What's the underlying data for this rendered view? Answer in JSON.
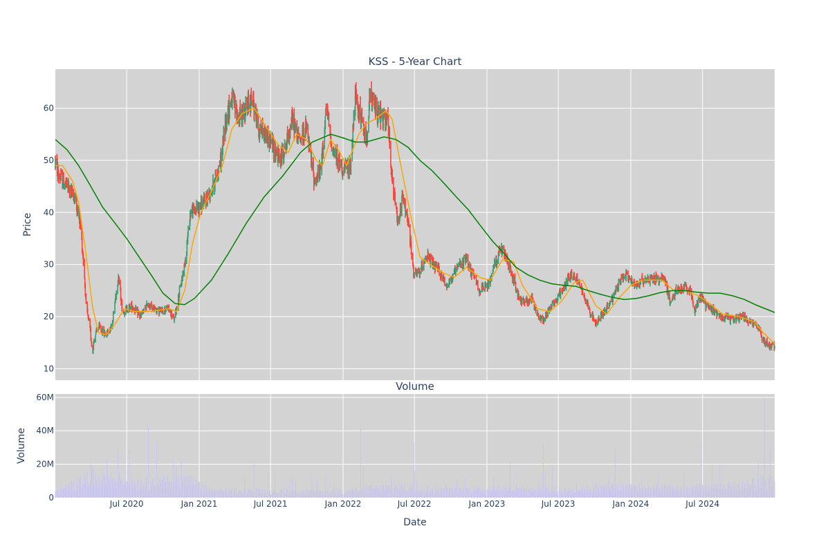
{
  "chart_data": [
    {
      "type": "candlestick",
      "title": "KSS - 5-Year Chart",
      "ylabel": "Price",
      "ylim": [
        7.8,
        67.5
      ],
      "yticks": [
        10,
        20,
        30,
        40,
        50,
        60
      ],
      "grid": true,
      "background": "#d3d3d3",
      "increasing_color": "#3d9970",
      "decreasing_color": "#ff4136",
      "x_start": "2020-01-02",
      "x_end": "2024-12-31",
      "anchors": [
        [
          "2020-01-02",
          50
        ],
        [
          "2020-01-10",
          47
        ],
        [
          "2020-02-01",
          45
        ],
        [
          "2020-02-20",
          43
        ],
        [
          "2020-03-05",
          38
        ],
        [
          "2020-03-15",
          29
        ],
        [
          "2020-03-20",
          22
        ],
        [
          "2020-03-31",
          17
        ],
        [
          "2020-04-05",
          13
        ],
        [
          "2020-04-10",
          16
        ],
        [
          "2020-04-20",
          18
        ],
        [
          "2020-05-10",
          16.5
        ],
        [
          "2020-05-25",
          18.5
        ],
        [
          "2020-06-05",
          25
        ],
        [
          "2020-06-10",
          28
        ],
        [
          "2020-06-20",
          21
        ],
        [
          "2020-07-15",
          22
        ],
        [
          "2020-08-05",
          20
        ],
        [
          "2020-08-25",
          22.5
        ],
        [
          "2020-09-20",
          21
        ],
        [
          "2020-10-15",
          21.5
        ],
        [
          "2020-10-30",
          19.5
        ],
        [
          "2020-11-10",
          24
        ],
        [
          "2020-11-25",
          30
        ],
        [
          "2020-12-10",
          40
        ],
        [
          "2020-12-31",
          41
        ],
        [
          "2021-01-15",
          42
        ],
        [
          "2021-02-05",
          45
        ],
        [
          "2021-02-25",
          50
        ],
        [
          "2021-03-10",
          58
        ],
        [
          "2021-03-25",
          62
        ],
        [
          "2021-04-10",
          58
        ],
        [
          "2021-05-01",
          60
        ],
        [
          "2021-05-15",
          62
        ],
        [
          "2021-06-01",
          56
        ],
        [
          "2021-06-20",
          55
        ],
        [
          "2021-07-05",
          53
        ],
        [
          "2021-07-25",
          50
        ],
        [
          "2021-08-10",
          53
        ],
        [
          "2021-08-25",
          58
        ],
        [
          "2021-09-10",
          54
        ],
        [
          "2021-09-30",
          56
        ],
        [
          "2021-10-20",
          46
        ],
        [
          "2021-11-05",
          48
        ],
        [
          "2021-11-20",
          60
        ],
        [
          "2021-12-05",
          52
        ],
        [
          "2021-12-20",
          50
        ],
        [
          "2022-01-05",
          48
        ],
        [
          "2022-01-20",
          49
        ],
        [
          "2022-02-01",
          62
        ],
        [
          "2022-02-15",
          58
        ],
        [
          "2022-03-01",
          54
        ],
        [
          "2022-03-10",
          62
        ],
        [
          "2022-03-25",
          60
        ],
        [
          "2022-04-10",
          58
        ],
        [
          "2022-04-25",
          57
        ],
        [
          "2022-05-05",
          46
        ],
        [
          "2022-05-20",
          38
        ],
        [
          "2022-06-01",
          43
        ],
        [
          "2022-06-15",
          38
        ],
        [
          "2022-06-30",
          28
        ],
        [
          "2022-07-15",
          28.5
        ],
        [
          "2022-07-31",
          32
        ],
        [
          "2022-08-15",
          30
        ],
        [
          "2022-08-31",
          29
        ],
        [
          "2022-09-20",
          26
        ],
        [
          "2022-10-05",
          27.5
        ],
        [
          "2022-10-25",
          30
        ],
        [
          "2022-11-10",
          31
        ],
        [
          "2022-11-25",
          28
        ],
        [
          "2022-12-15",
          25
        ],
        [
          "2023-01-05",
          26
        ],
        [
          "2023-01-20",
          30
        ],
        [
          "2023-02-05",
          33
        ],
        [
          "2023-02-20",
          31
        ],
        [
          "2023-03-10",
          27
        ],
        [
          "2023-03-25",
          23
        ],
        [
          "2023-04-10",
          23
        ],
        [
          "2023-04-25",
          23.5
        ],
        [
          "2023-05-10",
          20
        ],
        [
          "2023-05-25",
          19.5
        ],
        [
          "2023-06-10",
          22
        ],
        [
          "2023-06-25",
          23
        ],
        [
          "2023-07-10",
          25
        ],
        [
          "2023-07-31",
          28
        ],
        [
          "2023-08-15",
          27.5
        ],
        [
          "2023-08-31",
          25
        ],
        [
          "2023-09-20",
          21
        ],
        [
          "2023-10-05",
          18.5
        ],
        [
          "2023-10-20",
          20.5
        ],
        [
          "2023-11-05",
          22
        ],
        [
          "2023-11-20",
          24
        ],
        [
          "2023-12-05",
          27
        ],
        [
          "2023-12-20",
          28
        ],
        [
          "2024-01-10",
          26
        ],
        [
          "2024-01-31",
          27
        ],
        [
          "2024-02-20",
          27.5
        ],
        [
          "2024-03-10",
          27
        ],
        [
          "2024-03-25",
          28
        ],
        [
          "2024-04-10",
          22.5
        ],
        [
          "2024-04-25",
          25
        ],
        [
          "2024-05-15",
          25.5
        ],
        [
          "2024-05-31",
          25
        ],
        [
          "2024-06-10",
          21
        ],
        [
          "2024-06-25",
          24
        ],
        [
          "2024-07-10",
          22
        ],
        [
          "2024-07-31",
          21
        ],
        [
          "2024-08-20",
          20
        ],
        [
          "2024-09-15",
          19.5
        ],
        [
          "2024-10-10",
          20
        ],
        [
          "2024-10-31",
          19
        ],
        [
          "2024-11-20",
          18
        ],
        [
          "2024-12-01",
          15.5
        ],
        [
          "2024-12-20",
          14.5
        ],
        [
          "2024-12-31",
          14.2
        ]
      ],
      "overlays": [
        {
          "type": "line",
          "color": "#ffa500",
          "points": [
            [
              "2020-01-02",
              49
            ],
            [
              "2020-01-20",
              49
            ],
            [
              "2020-02-15",
              46
            ],
            [
              "2020-03-01",
              42
            ],
            [
              "2020-03-20",
              32
            ],
            [
              "2020-04-05",
              22
            ],
            [
              "2020-04-20",
              17
            ],
            [
              "2020-05-10",
              16.5
            ],
            [
              "2020-06-01",
              18.5
            ],
            [
              "2020-06-25",
              21.5
            ],
            [
              "2020-07-20",
              21
            ],
            [
              "2020-09-01",
              21
            ],
            [
              "2020-10-15",
              21.5
            ],
            [
              "2020-11-05",
              21
            ],
            [
              "2020-11-25",
              25
            ],
            [
              "2020-12-15",
              34
            ],
            [
              "2021-01-05",
              40
            ],
            [
              "2021-02-01",
              44
            ],
            [
              "2021-03-01",
              49
            ],
            [
              "2021-03-25",
              56
            ],
            [
              "2021-04-20",
              59
            ],
            [
              "2021-05-20",
              60
            ],
            [
              "2021-06-15",
              57
            ],
            [
              "2021-07-20",
              53
            ],
            [
              "2021-08-15",
              51.5
            ],
            [
              "2021-09-05",
              55
            ],
            [
              "2021-09-30",
              54
            ],
            [
              "2021-10-25",
              50
            ],
            [
              "2021-11-10",
              49
            ],
            [
              "2021-11-30",
              54
            ],
            [
              "2021-12-20",
              52
            ],
            [
              "2022-01-10",
              49
            ],
            [
              "2022-02-10",
              55
            ],
            [
              "2022-03-01",
              57
            ],
            [
              "2022-03-25",
              58
            ],
            [
              "2022-04-20",
              59.5
            ],
            [
              "2022-05-05",
              58
            ],
            [
              "2022-05-25",
              50
            ],
            [
              "2022-06-20",
              40
            ],
            [
              "2022-07-15",
              31.5
            ],
            [
              "2022-08-10",
              30
            ],
            [
              "2022-09-10",
              28.5
            ],
            [
              "2022-10-10",
              27.5
            ],
            [
              "2022-11-10",
              29.5
            ],
            [
              "2022-12-15",
              27.5
            ],
            [
              "2023-01-10",
              27
            ],
            [
              "2023-02-10",
              31
            ],
            [
              "2023-03-10",
              30.5
            ],
            [
              "2023-04-01",
              26
            ],
            [
              "2023-05-10",
              21.5
            ],
            [
              "2023-06-10",
              21
            ],
            [
              "2023-07-10",
              23
            ],
            [
              "2023-08-10",
              26.5
            ],
            [
              "2023-09-01",
              27
            ],
            [
              "2023-10-05",
              22
            ],
            [
              "2023-11-01",
              20.5
            ],
            [
              "2023-12-01",
              23.5
            ],
            [
              "2024-01-01",
              26
            ],
            [
              "2024-02-01",
              27
            ],
            [
              "2024-03-20",
              27
            ],
            [
              "2024-04-20",
              25
            ],
            [
              "2024-05-20",
              25
            ],
            [
              "2024-06-20",
              24
            ],
            [
              "2024-07-20",
              22.5
            ],
            [
              "2024-08-20",
              20.5
            ],
            [
              "2024-10-01",
              20
            ],
            [
              "2024-11-10",
              19
            ],
            [
              "2024-12-01",
              17
            ],
            [
              "2024-12-31",
              14.8
            ]
          ]
        },
        {
          "type": "line",
          "color": "#008000",
          "points": [
            [
              "2020-01-02",
              54
            ],
            [
              "2020-02-01",
              52
            ],
            [
              "2020-03-01",
              49
            ],
            [
              "2020-04-01",
              45
            ],
            [
              "2020-05-01",
              41
            ],
            [
              "2020-06-01",
              38
            ],
            [
              "2020-07-01",
              35
            ],
            [
              "2020-08-01",
              31.5
            ],
            [
              "2020-09-01",
              28
            ],
            [
              "2020-10-01",
              24.5
            ],
            [
              "2020-11-01",
              22.5
            ],
            [
              "2020-11-25",
              22.3
            ],
            [
              "2020-12-20",
              23.5
            ],
            [
              "2021-02-01",
              27
            ],
            [
              "2021-03-15",
              32
            ],
            [
              "2021-05-01",
              38
            ],
            [
              "2021-06-15",
              43
            ],
            [
              "2021-08-01",
              47
            ],
            [
              "2021-09-15",
              51.5
            ],
            [
              "2021-10-15",
              53.5
            ],
            [
              "2021-12-01",
              55
            ],
            [
              "2022-01-01",
              54.3
            ],
            [
              "2022-02-01",
              53.5
            ],
            [
              "2022-03-01",
              53.5
            ],
            [
              "2022-04-15",
              54.5
            ],
            [
              "2022-05-15",
              54
            ],
            [
              "2022-06-15",
              52.5
            ],
            [
              "2022-07-15",
              50
            ],
            [
              "2022-08-15",
              48
            ],
            [
              "2022-09-15",
              45.5
            ],
            [
              "2022-10-15",
              43
            ],
            [
              "2022-11-15",
              40.5
            ],
            [
              "2022-12-15",
              37.5
            ],
            [
              "2023-01-15",
              34.5
            ],
            [
              "2023-02-15",
              32
            ],
            [
              "2023-03-15",
              29.5
            ],
            [
              "2023-04-15",
              28
            ],
            [
              "2023-05-15",
              27
            ],
            [
              "2023-06-15",
              26.3
            ],
            [
              "2023-07-15",
              26
            ],
            [
              "2023-08-15",
              25.8
            ],
            [
              "2023-09-15",
              25
            ],
            [
              "2023-10-15",
              24.3
            ],
            [
              "2023-11-15",
              23.7
            ],
            [
              "2023-12-15",
              23.3
            ],
            [
              "2024-01-15",
              23.5
            ],
            [
              "2024-02-15",
              24
            ],
            [
              "2024-03-15",
              24.6
            ],
            [
              "2024-04-15",
              25
            ],
            [
              "2024-05-15",
              25
            ],
            [
              "2024-06-15",
              24.7
            ],
            [
              "2024-07-15",
              24.5
            ],
            [
              "2024-08-15",
              24.5
            ],
            [
              "2024-09-15",
              24
            ],
            [
              "2024-10-15",
              23.3
            ],
            [
              "2024-11-15",
              22.2
            ],
            [
              "2024-12-31",
              20.8
            ]
          ]
        }
      ]
    },
    {
      "type": "bar",
      "title": "Volume",
      "xlabel": "Date",
      "ylabel": "Volume",
      "ylim": [
        0,
        62000000
      ],
      "yticks": [
        0,
        20000000,
        40000000,
        60000000
      ],
      "ytick_labels": [
        "0",
        "20M",
        "40M",
        "60M"
      ],
      "xticks": [
        "2020-07-01",
        "2021-01-01",
        "2021-07-01",
        "2022-01-01",
        "2022-07-01",
        "2023-01-01",
        "2023-07-01",
        "2024-01-01",
        "2024-07-01"
      ],
      "xtick_labels": [
        "Jul 2020",
        "Jan 2021",
        "Jul 2021",
        "Jan 2022",
        "Jul 2022",
        "Jan 2023",
        "Jul 2023",
        "Jan 2024",
        "Jul 2024"
      ],
      "grid": true,
      "background": "#d3d3d3",
      "bar_color": "#c8c6ec",
      "baseline": 3500000,
      "base_profile": [
        [
          "2020-01-02",
          3500000
        ],
        [
          "2020-03-01",
          8000000
        ],
        [
          "2020-04-01",
          12000000
        ],
        [
          "2020-06-01",
          10000000
        ],
        [
          "2020-09-01",
          8000000
        ],
        [
          "2020-12-01",
          10000000
        ],
        [
          "2021-02-01",
          4000000
        ],
        [
          "2021-12-01",
          3500000
        ],
        [
          "2022-03-01",
          5000000
        ],
        [
          "2022-06-01",
          6000000
        ],
        [
          "2022-09-01",
          4000000
        ],
        [
          "2023-03-01",
          5000000
        ],
        [
          "2023-07-01",
          4000000
        ],
        [
          "2023-12-01",
          6000000
        ],
        [
          "2024-06-01",
          5000000
        ],
        [
          "2024-10-01",
          7000000
        ],
        [
          "2024-12-31",
          10000000
        ]
      ],
      "spikes": [
        [
          "2020-04-01",
          23000000
        ],
        [
          "2020-05-12",
          23000000
        ],
        [
          "2020-08-25",
          44000000
        ],
        [
          "2020-09-15",
          33000000
        ],
        [
          "2020-11-17",
          23000000
        ],
        [
          "2021-05-20",
          22000000
        ],
        [
          "2021-11-18",
          15000000
        ],
        [
          "2022-02-15",
          42000000
        ],
        [
          "2022-06-30",
          33000000
        ],
        [
          "2023-03-01",
          22000000
        ],
        [
          "2023-05-24",
          32000000
        ],
        [
          "2023-11-22",
          29000000
        ],
        [
          "2024-03-12",
          13000000
        ],
        [
          "2024-06-28",
          32000000
        ],
        [
          "2024-12-05",
          60000000
        ],
        [
          "2024-12-20",
          28000000
        ]
      ]
    }
  ]
}
